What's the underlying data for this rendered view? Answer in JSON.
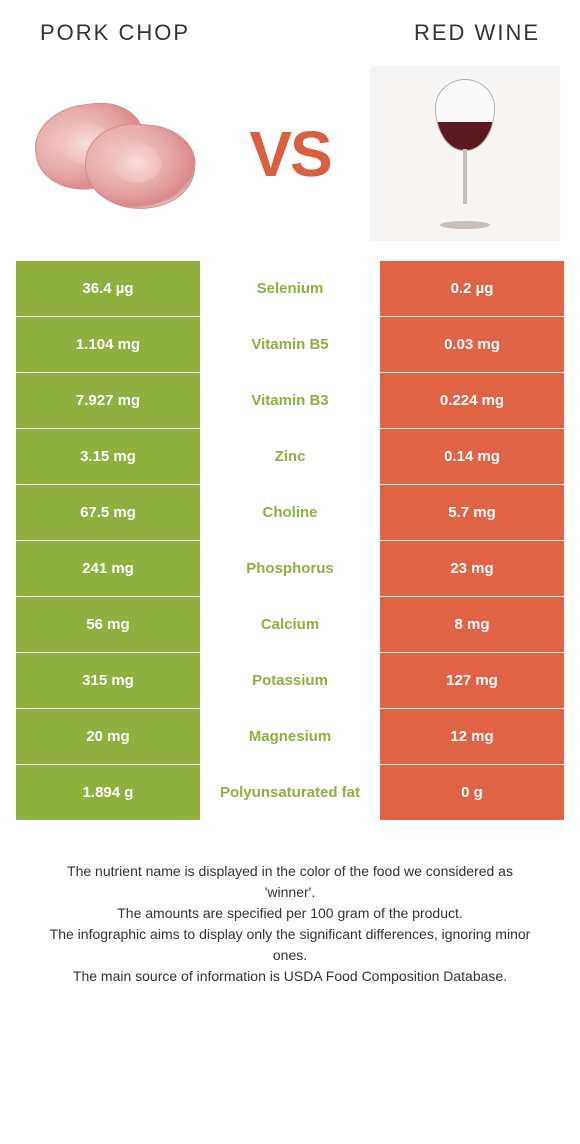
{
  "header": {
    "left_title": "PORK CHOP",
    "right_title": "RED WINE",
    "vs_label": "VS"
  },
  "colors": {
    "left": "#8fb03e",
    "right": "#df6344",
    "left_text": "#8fb03e",
    "right_text": "#df6344",
    "cell_text": "#ffffff"
  },
  "rows": [
    {
      "left": "36.4 µg",
      "nutrient": "Selenium",
      "right": "0.2 µg",
      "winner": "left"
    },
    {
      "left": "1.104 mg",
      "nutrient": "Vitamin B5",
      "right": "0.03 mg",
      "winner": "left"
    },
    {
      "left": "7.927 mg",
      "nutrient": "Vitamin B3",
      "right": "0.224 mg",
      "winner": "left"
    },
    {
      "left": "3.15 mg",
      "nutrient": "Zinc",
      "right": "0.14 mg",
      "winner": "left"
    },
    {
      "left": "67.5 mg",
      "nutrient": "Choline",
      "right": "5.7 mg",
      "winner": "left"
    },
    {
      "left": "241 mg",
      "nutrient": "Phosphorus",
      "right": "23 mg",
      "winner": "left"
    },
    {
      "left": "56 mg",
      "nutrient": "Calcium",
      "right": "8 mg",
      "winner": "left"
    },
    {
      "left": "315 mg",
      "nutrient": "Potassium",
      "right": "127 mg",
      "winner": "left"
    },
    {
      "left": "20 mg",
      "nutrient": "Magnesium",
      "right": "12 mg",
      "winner": "left"
    },
    {
      "left": "1.894 g",
      "nutrient": "Polyunsaturated fat",
      "right": "0 g",
      "winner": "left"
    }
  ],
  "footer": {
    "line1": "The nutrient name is displayed in the color of the food we considered as 'winner'.",
    "line2": "The amounts are specified per 100 gram of the product.",
    "line3": "The infographic aims to display only the significant differences, ignoring minor ones.",
    "line4": "The main source of information is USDA Food Composition Database."
  }
}
